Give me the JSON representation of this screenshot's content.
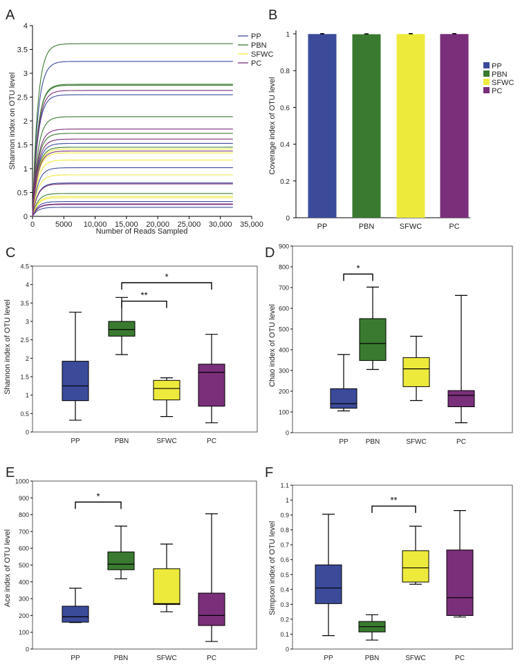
{
  "colors": {
    "PP": "#3B4B9A",
    "PBN": "#3A7A30",
    "SFWC": "#EEEA3C",
    "PC": "#7A2F7A",
    "axis": "#000000",
    "text": "#222222"
  },
  "chart_data": [
    {
      "id": "A",
      "panel_label": "A",
      "type": "line",
      "title": "",
      "xlabel": "Number of Reads Sampled",
      "ylabel": "Shannon index on OTU level",
      "xlim": [
        0,
        35000
      ],
      "ylim": [
        0,
        4
      ],
      "xticks": [
        0,
        5000,
        10000,
        15000,
        20000,
        25000,
        30000,
        35000
      ],
      "xtick_labels": [
        "0",
        "5000",
        "10,000",
        "15,000",
        "20,000",
        "25,000",
        "30,000",
        "35,000"
      ],
      "yticks": [
        0,
        0.5,
        1,
        1.5,
        2,
        2.5,
        3,
        3.5,
        4
      ],
      "ytick_labels": [
        "0",
        "0.5",
        "1",
        "1.5",
        "2",
        "2.5",
        "3",
        "3.5",
        "4"
      ],
      "x_end": 32000,
      "legend": [
        "PP",
        "PBN",
        "SFWC",
        "PC"
      ],
      "series": [
        {
          "name": "PP",
          "plateaus": [
            3.25,
            1.02,
            0.7,
            1.53,
            0.31,
            0.19,
            2.55
          ]
        },
        {
          "name": "PBN",
          "plateaus": [
            3.62,
            2.77,
            2.75,
            2.09,
            1.45,
            1.74,
            0.48
          ]
        },
        {
          "name": "SFWC",
          "plateaus": [
            1.41,
            1.33,
            1.18,
            0.87,
            0.39,
            0.42
          ]
        },
        {
          "name": "PC",
          "plateaus": [
            2.64,
            1.83,
            1.62,
            1.37,
            0.68,
            0.25,
            0.26
          ]
        }
      ]
    },
    {
      "id": "B",
      "panel_label": "B",
      "type": "bar",
      "ylabel": "Coverage index of OTU level",
      "categories": [
        "PP",
        "PBN",
        "SFWC",
        "PC"
      ],
      "values": [
        0.999,
        0.998,
        0.999,
        0.999
      ],
      "errors": [
        0.002,
        0.002,
        0.002,
        0.002
      ],
      "ylim": [
        0,
        1
      ],
      "yticks": [
        0,
        0.2,
        0.4,
        0.6,
        0.8,
        1
      ],
      "ytick_labels": [
        "0",
        "0.2",
        "0.4",
        "0.6",
        "0.8",
        "1"
      ],
      "legend": [
        "PP",
        "PBN",
        "SFWC",
        "PC"
      ]
    },
    {
      "id": "C",
      "panel_label": "C",
      "type": "box",
      "ylabel": "Shannon index of OTU level",
      "categories": [
        "PP",
        "PBN",
        "SFWC",
        "PC"
      ],
      "ylim": [
        0,
        4.5
      ],
      "yticks": [
        0,
        0.5,
        1,
        1.5,
        2,
        2.5,
        3,
        3.5,
        4,
        4.5
      ],
      "ytick_labels": [
        "0",
        "0.5",
        "1",
        "1.5",
        "2",
        "2.5",
        "3",
        "3.5",
        "4",
        "4.5"
      ],
      "boxes": [
        {
          "min": 0.32,
          "q1": 0.85,
          "median": 1.25,
          "q3": 1.92,
          "max": 3.25
        },
        {
          "min": 2.1,
          "q1": 2.6,
          "median": 2.78,
          "q3": 3.0,
          "max": 3.65
        },
        {
          "min": 0.42,
          "q1": 0.87,
          "median": 1.18,
          "q3": 1.4,
          "max": 1.47
        },
        {
          "min": 0.25,
          "q1": 0.7,
          "median": 1.62,
          "q3": 1.84,
          "max": 2.65
        }
      ],
      "significance": [
        {
          "from": 1,
          "to": 3,
          "y": 4.05,
          "label": "*"
        },
        {
          "from": 1,
          "to": 2,
          "y": 3.55,
          "label": "**"
        }
      ]
    },
    {
      "id": "D",
      "panel_label": "D",
      "type": "box",
      "ylabel": "Chao index of OTU level",
      "categories": [
        "PP",
        "PBN",
        "SFWC",
        "PC"
      ],
      "ylim": [
        0,
        900
      ],
      "yticks": [
        0,
        100,
        200,
        300,
        400,
        500,
        600,
        700,
        800,
        900
      ],
      "ytick_labels": [
        "0",
        "100",
        "200",
        "300",
        "400",
        "500",
        "600",
        "700",
        "800",
        "900"
      ],
      "boxes": [
        {
          "min": 105,
          "q1": 118,
          "median": 140,
          "q3": 212,
          "max": 377
        },
        {
          "min": 305,
          "q1": 348,
          "median": 430,
          "q3": 550,
          "max": 702
        },
        {
          "min": 155,
          "q1": 222,
          "median": 308,
          "q3": 362,
          "max": 465
        },
        {
          "min": 48,
          "q1": 125,
          "median": 180,
          "q3": 203,
          "max": 662
        }
      ],
      "significance": [
        {
          "from": 0,
          "to": 1,
          "y": 765,
          "label": "*"
        }
      ]
    },
    {
      "id": "E",
      "panel_label": "E",
      "type": "box",
      "ylabel": "Ace index of OTU level",
      "categories": [
        "PP",
        "PBN",
        "SFWC",
        "PC"
      ],
      "ylim": [
        0,
        1000
      ],
      "yticks": [
        0,
        100,
        200,
        300,
        400,
        500,
        600,
        700,
        800,
        900,
        1000
      ],
      "ytick_labels": [
        "0",
        "100",
        "200",
        "300",
        "400",
        "500",
        "600",
        "700",
        "800",
        "900",
        "1000"
      ],
      "boxes": [
        {
          "min": 158,
          "q1": 160,
          "median": 192,
          "q3": 255,
          "max": 362
        },
        {
          "min": 418,
          "q1": 472,
          "median": 505,
          "q3": 578,
          "max": 732
        },
        {
          "min": 222,
          "q1": 265,
          "median": 270,
          "q3": 478,
          "max": 625
        },
        {
          "min": 45,
          "q1": 140,
          "median": 200,
          "q3": 333,
          "max": 805
        }
      ],
      "significance": [
        {
          "from": 0,
          "to": 1,
          "y": 875,
          "label": "*"
        }
      ]
    },
    {
      "id": "F",
      "panel_label": "F",
      "type": "box",
      "ylabel": "Simpson index of OTU level",
      "categories": [
        "PP",
        "PBN",
        "SFWC",
        "PC"
      ],
      "ylim": [
        0,
        1.1
      ],
      "yticks": [
        0,
        0.1,
        0.2,
        0.3,
        0.4,
        0.5,
        0.6,
        0.7,
        0.8,
        0.9,
        1,
        1.1
      ],
      "ytick_labels": [
        "0",
        "0.1",
        "0.2",
        "0.3",
        "0.4",
        "0.5",
        "0.6",
        "0.7",
        "0.8",
        "0.9",
        "1",
        "1.1"
      ],
      "boxes": [
        {
          "min": 0.09,
          "q1": 0.305,
          "median": 0.41,
          "q3": 0.565,
          "max": 0.905
        },
        {
          "min": 0.06,
          "q1": 0.115,
          "median": 0.15,
          "q3": 0.185,
          "max": 0.23
        },
        {
          "min": 0.435,
          "q1": 0.45,
          "median": 0.545,
          "q3": 0.66,
          "max": 0.825
        },
        {
          "min": 0.215,
          "q1": 0.225,
          "median": 0.345,
          "q3": 0.665,
          "max": 0.93
        }
      ],
      "significance": [
        {
          "from": 1,
          "to": 2,
          "y": 0.96,
          "label": "**"
        }
      ]
    }
  ]
}
